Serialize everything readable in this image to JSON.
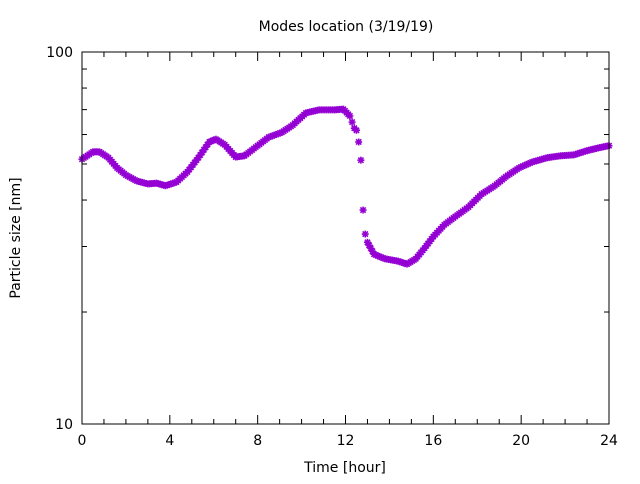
{
  "chart_data": {
    "type": "scatter",
    "title": "Modes location (3/19/19)",
    "xlabel": "Time [hour]",
    "ylabel": "Particle size [nm]",
    "xlim": [
      0,
      24
    ],
    "ylim": [
      10,
      100
    ],
    "yscale": "log",
    "xticks": [
      0,
      4,
      8,
      12,
      16,
      20,
      24
    ],
    "xtick_labels": [
      "0",
      "4",
      "8",
      "12",
      "16",
      "20",
      "24"
    ],
    "yticks": [
      10,
      100
    ],
    "ytick_labels": [
      "10",
      "100"
    ],
    "grid": false,
    "legend": "none",
    "color": "#9400D3",
    "x": [
      0,
      0.5,
      0.8,
      1.2,
      1.6,
      2,
      2.5,
      3,
      3.4,
      3.8,
      4.3,
      4.8,
      5.3,
      5.8,
      6.1,
      6.5,
      7,
      7.4,
      8,
      8.5,
      9.1,
      9.6,
      10.2,
      10.8,
      11.5,
      11.9,
      12.2,
      12.4,
      12.5,
      12.6,
      12.7,
      12.8,
      12.9,
      13.0,
      13.3,
      13.8,
      14.4,
      14.8,
      15.2,
      15.6,
      16,
      16.5,
      17,
      17.6,
      18.2,
      18.8,
      19.3,
      19.9,
      20.5,
      21.2,
      21.8,
      22.4,
      23,
      23.5,
      24
    ],
    "y": [
      51.5,
      53.9,
      53.9,
      52,
      48.8,
      46.7,
      45,
      44.2,
      44.4,
      43.7,
      44.7,
      47.6,
      52,
      57.3,
      58.3,
      56.3,
      52.2,
      52.6,
      56,
      59,
      60.8,
      63.6,
      68.6,
      69.9,
      69.9,
      70.2,
      67.3,
      62.4,
      61.6,
      57.3,
      51.2,
      37.6,
      32.4,
      30.8,
      28.6,
      27.8,
      27.4,
      26.9,
      27.8,
      29.7,
      31.9,
      34.3,
      36.1,
      38.3,
      41.5,
      43.7,
      46.2,
      48.8,
      50.6,
      52,
      52.6,
      52.9,
      54.3,
      55.2,
      56
    ]
  }
}
